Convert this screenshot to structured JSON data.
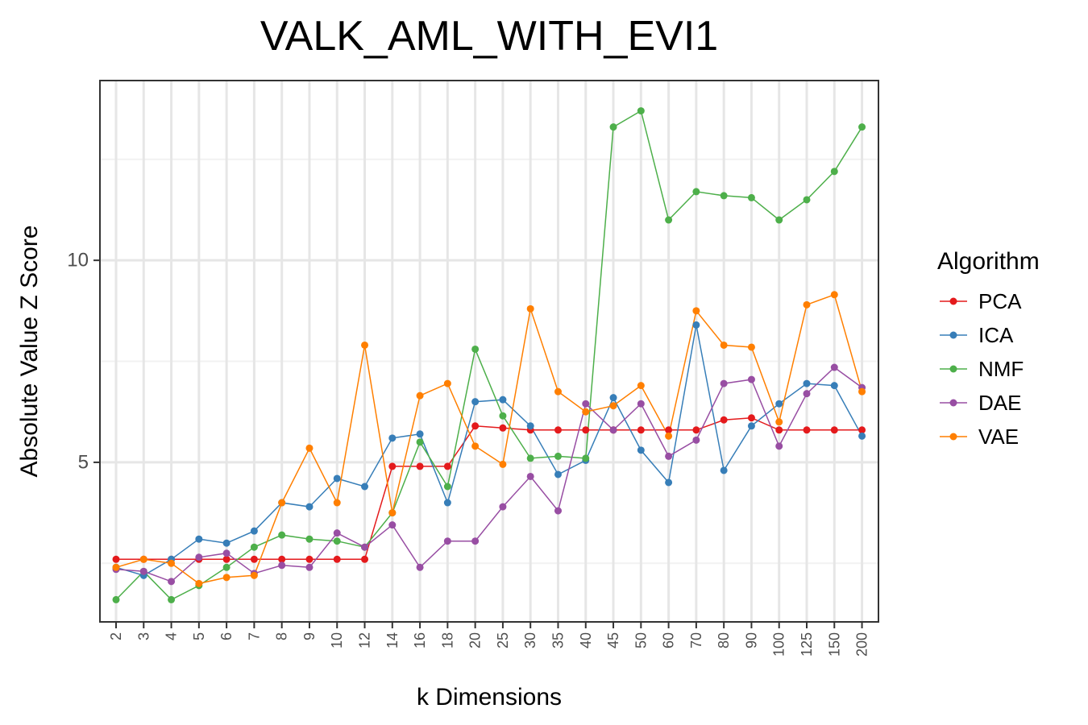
{
  "chart_data": {
    "type": "line",
    "title": "VALK_AML_WITH_EVI1",
    "xlabel": "k Dimensions",
    "ylabel": "Absolute Value Z Score",
    "categories": [
      "2",
      "3",
      "4",
      "5",
      "6",
      "7",
      "8",
      "9",
      "10",
      "12",
      "14",
      "16",
      "18",
      "20",
      "25",
      "30",
      "35",
      "40",
      "45",
      "50",
      "60",
      "70",
      "80",
      "90",
      "100",
      "125",
      "150",
      "200"
    ],
    "yticks": [
      5,
      10
    ],
    "ylim": [
      1.05,
      14.45
    ],
    "grid": true,
    "legend": {
      "title": "Algorithm",
      "position": "right"
    },
    "series": [
      {
        "name": "PCA",
        "color": "#E41A1C",
        "values": [
          2.6,
          2.6,
          2.6,
          2.6,
          2.6,
          2.6,
          2.6,
          2.6,
          2.6,
          2.6,
          4.9,
          4.9,
          4.9,
          5.9,
          5.85,
          5.8,
          5.8,
          5.8,
          5.8,
          5.8,
          5.8,
          5.8,
          6.05,
          6.1,
          5.8,
          5.8,
          5.8,
          5.8
        ]
      },
      {
        "name": "ICA",
        "color": "#377EB8",
        "values": [
          2.4,
          2.2,
          2.6,
          3.1,
          3.0,
          3.3,
          4.0,
          3.9,
          4.6,
          4.4,
          5.6,
          5.7,
          4.0,
          6.5,
          6.55,
          5.9,
          4.7,
          5.05,
          6.6,
          5.3,
          4.5,
          8.4,
          4.8,
          5.9,
          6.45,
          6.95,
          6.9,
          5.65
        ]
      },
      {
        "name": "NMF",
        "color": "#4DAF4A",
        "values": [
          1.6,
          2.3,
          1.6,
          1.95,
          2.4,
          2.9,
          3.2,
          3.1,
          3.05,
          2.9,
          3.75,
          5.5,
          4.4,
          7.8,
          6.15,
          5.1,
          5.15,
          5.1,
          13.3,
          13.7,
          11.0,
          11.7,
          11.6,
          11.55,
          11.0,
          11.5,
          12.2,
          13.3
        ]
      },
      {
        "name": "DAE",
        "color": "#984EA3",
        "values": [
          2.35,
          2.3,
          2.05,
          2.65,
          2.75,
          2.25,
          2.45,
          2.4,
          3.25,
          2.9,
          3.45,
          2.4,
          3.05,
          3.05,
          3.9,
          4.65,
          3.8,
          6.45,
          5.8,
          6.45,
          5.15,
          5.55,
          6.95,
          7.05,
          5.4,
          6.7,
          7.35,
          6.85
        ]
      },
      {
        "name": "VAE",
        "color": "#FF7F00",
        "values": [
          2.4,
          2.6,
          2.5,
          2.0,
          2.15,
          2.2,
          4.0,
          5.35,
          4.0,
          7.9,
          3.75,
          6.65,
          6.95,
          5.4,
          4.95,
          8.8,
          6.75,
          6.25,
          6.4,
          6.9,
          5.65,
          8.75,
          7.9,
          7.85,
          6.0,
          8.9,
          9.15,
          6.75
        ]
      }
    ]
  }
}
